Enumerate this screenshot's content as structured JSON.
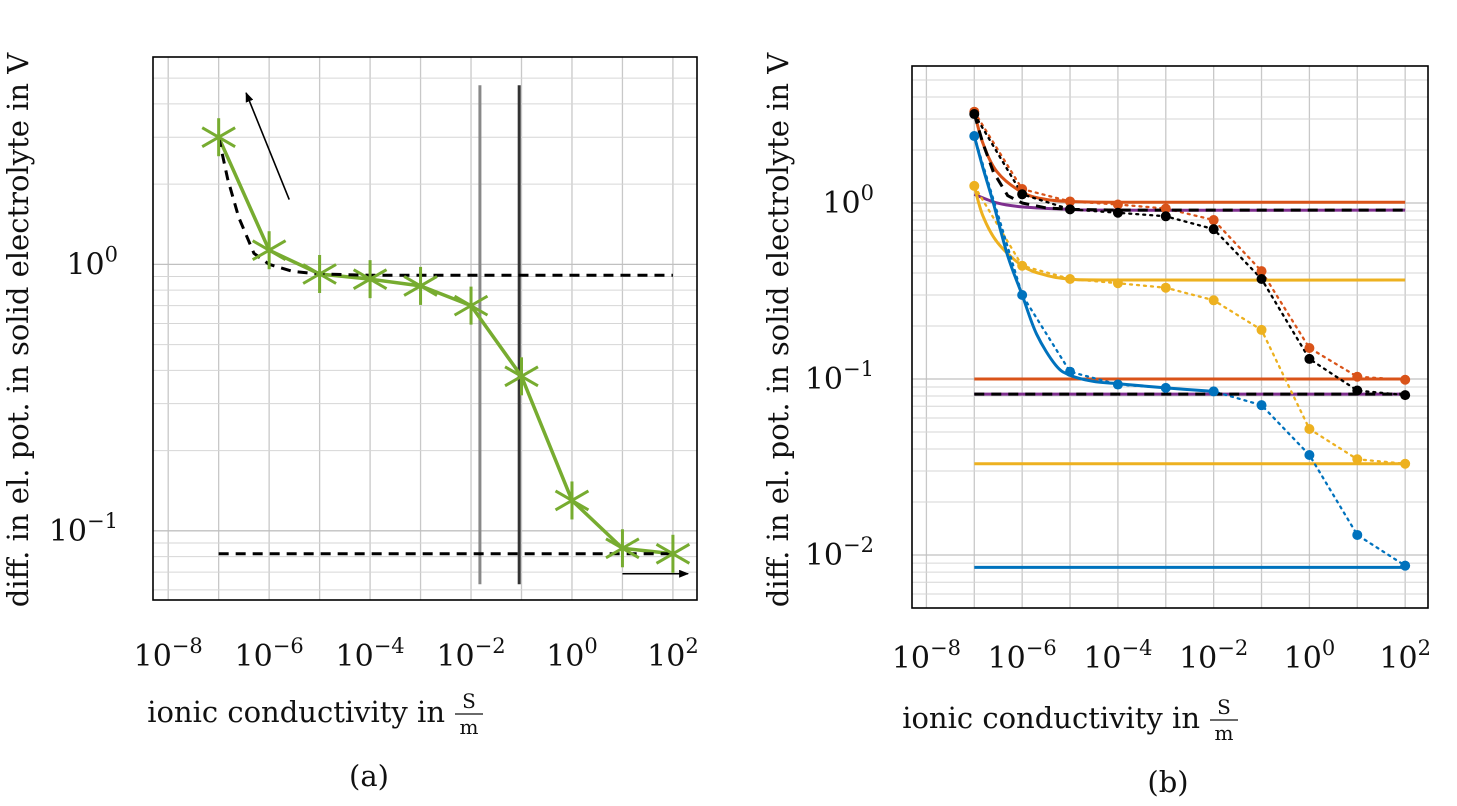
{
  "chart_data": [
    {
      "type": "line",
      "panel_label": "(a)",
      "xlabel": "ionic conductivity in",
      "xlabel_unit_num": "S",
      "xlabel_unit_den": "m",
      "ylabel": "diff. in el. pot. in solid electrolyte in V",
      "x_scale": "log",
      "y_scale": "log",
      "xlim": [
        5e-09,
        300.0
      ],
      "ylim": [
        0.055,
        6
      ],
      "x_ticks": [
        {
          "value": 1e-08,
          "base": "10",
          "exp": "−8"
        },
        {
          "value": 1e-06,
          "base": "10",
          "exp": "−6"
        },
        {
          "value": 0.0001,
          "base": "10",
          "exp": "−4"
        },
        {
          "value": 0.01,
          "base": "10",
          "exp": "−2"
        },
        {
          "value": 1,
          "base": "10",
          "exp": "0"
        },
        {
          "value": 100,
          "base": "10",
          "exp": "2"
        }
      ],
      "y_ticks": [
        {
          "value": 1,
          "base": "10",
          "exp": "0"
        },
        {
          "value": 0.1,
          "base": "10",
          "exp": "−1"
        }
      ],
      "grid": true,
      "series": [
        {
          "color": "#77ac30",
          "style": "solid",
          "marker": "asterisk",
          "x": [
            1e-07,
            1e-06,
            1e-05,
            0.0001,
            0.001,
            0.01,
            0.1,
            1,
            10,
            100
          ],
          "y": [
            3.0,
            1.13,
            0.92,
            0.88,
            0.83,
            0.7,
            0.38,
            0.13,
            0.086,
            0.082
          ]
        },
        {
          "color": "#000000",
          "style": "dashed",
          "x": [
            1e-07,
            1.5e-07,
            2.5e-07,
            5e-07,
            1e-06,
            3e-06,
            1e-05,
            0.0001,
            0.001,
            0.01,
            0.1,
            1,
            10,
            100
          ],
          "y": [
            3.0,
            2.1,
            1.5,
            1.1,
            1.0,
            0.94,
            0.92,
            0.91,
            0.91,
            0.91,
            0.91,
            0.91,
            0.91,
            0.91
          ]
        },
        {
          "color": "#000000",
          "style": "dashed",
          "x": [
            1e-07,
            100
          ],
          "y": [
            0.082,
            0.082
          ]
        }
      ],
      "vlines": [
        {
          "x": 0.015,
          "color": "#888888"
        },
        {
          "x": 0.09,
          "color": "#333333"
        }
      ],
      "arrows": [
        {
          "from": [
            2.5e-06,
            1.75
          ],
          "to": [
            3.5e-07,
            4.4
          ]
        },
        {
          "from": [
            10,
            0.069
          ],
          "to": [
            200,
            0.069
          ]
        }
      ]
    },
    {
      "type": "line",
      "panel_label": "(b)",
      "xlabel": "ionic conductivity in",
      "xlabel_unit_num": "S",
      "xlabel_unit_den": "m",
      "ylabel": "diff. in el. pot. in solid electrolyte in V",
      "x_scale": "log",
      "y_scale": "log",
      "xlim": [
        5e-09,
        300.0
      ],
      "ylim": [
        0.005,
        6
      ],
      "x_ticks": [
        {
          "value": 1e-08,
          "base": "10",
          "exp": "−8"
        },
        {
          "value": 1e-06,
          "base": "10",
          "exp": "−6"
        },
        {
          "value": 0.0001,
          "base": "10",
          "exp": "−4"
        },
        {
          "value": 0.01,
          "base": "10",
          "exp": "−2"
        },
        {
          "value": 1,
          "base": "10",
          "exp": "0"
        },
        {
          "value": 100,
          "base": "10",
          "exp": "2"
        }
      ],
      "y_ticks": [
        {
          "value": 1,
          "base": "10",
          "exp": "0"
        },
        {
          "value": 0.1,
          "base": "10",
          "exp": "−1"
        },
        {
          "value": 0.01,
          "base": "10",
          "exp": "−2"
        }
      ],
      "grid": true,
      "series": [
        {
          "color": "#d95319",
          "style": "solid",
          "x": [
            1e-07,
            1.5e-07,
            3e-07,
            1e-06,
            3e-06,
            1e-05,
            0.0001,
            0.01,
            100
          ],
          "y": [
            3.3,
            2.2,
            1.5,
            1.15,
            1.05,
            1.02,
            1.01,
            1.01,
            1.01
          ]
        },
        {
          "color": "#d95319",
          "style": "solid",
          "x": [
            1e-07,
            100
          ],
          "y": [
            0.1,
            0.1
          ]
        },
        {
          "color": "#d95319",
          "style": "dotted",
          "marker": "dot",
          "x": [
            1e-07,
            1e-06,
            1e-05,
            0.0001,
            0.001,
            0.01,
            0.1,
            1,
            10,
            100
          ],
          "y": [
            3.3,
            1.2,
            1.02,
            0.98,
            0.93,
            0.8,
            0.41,
            0.15,
            0.103,
            0.099
          ]
        },
        {
          "color": "#7e2f8e",
          "style": "solid",
          "x": [
            1e-07,
            3e-07,
            1e-06,
            1e-05,
            0.0001,
            100
          ],
          "y": [
            1.12,
            1.0,
            0.95,
            0.92,
            0.91,
            0.91
          ]
        },
        {
          "color": "#7e2f8e",
          "style": "solid",
          "x": [
            1e-07,
            100
          ],
          "y": [
            0.082,
            0.082
          ]
        },
        {
          "color": "#edb120",
          "style": "solid",
          "x": [
            1e-07,
            1.5e-07,
            3e-07,
            1e-06,
            3e-06,
            1e-05,
            0.0001,
            100
          ],
          "y": [
            1.25,
            0.85,
            0.6,
            0.44,
            0.39,
            0.37,
            0.365,
            0.365
          ]
        },
        {
          "color": "#edb120",
          "style": "solid",
          "x": [
            1e-07,
            100
          ],
          "y": [
            0.033,
            0.033
          ]
        },
        {
          "color": "#edb120",
          "style": "dotted",
          "marker": "dot",
          "x": [
            1e-07,
            1e-06,
            1e-05,
            0.0001,
            0.001,
            0.01,
            0.1,
            1,
            10,
            100
          ],
          "y": [
            1.25,
            0.44,
            0.37,
            0.35,
            0.33,
            0.28,
            0.19,
            0.052,
            0.035,
            0.033
          ]
        },
        {
          "color": "#0072bd",
          "style": "solid",
          "x": [
            1e-07,
            1.5e-07,
            2.5e-07,
            5e-07,
            1e-06,
            2e-06,
            5e-06,
            1e-05,
            3e-05,
            0.0001,
            0.001,
            0.01
          ],
          "y": [
            2.4,
            1.6,
            1.0,
            0.5,
            0.3,
            0.18,
            0.12,
            0.105,
            0.097,
            0.094,
            0.089,
            0.085
          ]
        },
        {
          "color": "#0072bd",
          "style": "solid",
          "x": [
            1e-07,
            100
          ],
          "y": [
            0.0085,
            0.0085
          ]
        },
        {
          "color": "#0072bd",
          "style": "dotted",
          "marker": "dot",
          "x": [
            1e-07,
            1e-06,
            1e-05,
            0.0001,
            0.001,
            0.01,
            0.1,
            1,
            10,
            100
          ],
          "y": [
            2.4,
            0.3,
            0.11,
            0.093,
            0.089,
            0.085,
            0.071,
            0.037,
            0.013,
            0.0087
          ]
        },
        {
          "color": "#000000",
          "style": "dashed",
          "x": [
            1e-07,
            1.5e-07,
            2.5e-07,
            5e-07,
            1e-06,
            3e-06,
            1e-05,
            0.0001,
            100
          ],
          "y": [
            3.2,
            2.2,
            1.5,
            1.1,
            1.0,
            0.94,
            0.92,
            0.91,
            0.91
          ]
        },
        {
          "color": "#000000",
          "style": "dashed",
          "x": [
            1e-07,
            100
          ],
          "y": [
            0.082,
            0.082
          ]
        },
        {
          "color": "#000000",
          "style": "dotted",
          "marker": "dot",
          "x": [
            1e-07,
            1e-06,
            1e-05,
            0.0001,
            0.001,
            0.01,
            0.1,
            1,
            10,
            100
          ],
          "y": [
            3.2,
            1.12,
            0.92,
            0.88,
            0.84,
            0.71,
            0.37,
            0.13,
            0.086,
            0.081
          ]
        }
      ]
    }
  ]
}
